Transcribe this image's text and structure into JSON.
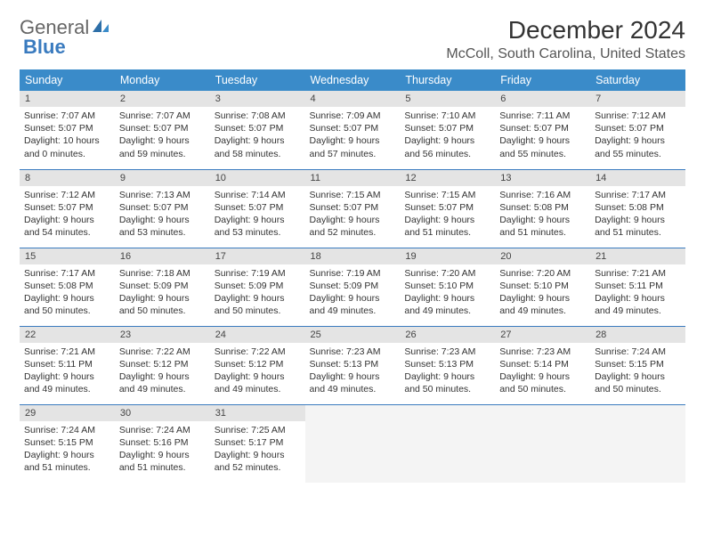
{
  "logo": {
    "text1": "General",
    "text2": "Blue"
  },
  "title": "December 2024",
  "location": "McColl, South Carolina, United States",
  "colors": {
    "header_bg": "#3a8bc9",
    "header_text": "#ffffff",
    "daynum_bg": "#e4e4e4",
    "row_border": "#3a7bbf",
    "logo_blue": "#3a7bbf"
  },
  "weekdays": [
    "Sunday",
    "Monday",
    "Tuesday",
    "Wednesday",
    "Thursday",
    "Friday",
    "Saturday"
  ],
  "days": [
    {
      "n": "1",
      "sunrise": "7:07 AM",
      "sunset": "5:07 PM",
      "daylight": "10 hours and 0 minutes."
    },
    {
      "n": "2",
      "sunrise": "7:07 AM",
      "sunset": "5:07 PM",
      "daylight": "9 hours and 59 minutes."
    },
    {
      "n": "3",
      "sunrise": "7:08 AM",
      "sunset": "5:07 PM",
      "daylight": "9 hours and 58 minutes."
    },
    {
      "n": "4",
      "sunrise": "7:09 AM",
      "sunset": "5:07 PM",
      "daylight": "9 hours and 57 minutes."
    },
    {
      "n": "5",
      "sunrise": "7:10 AM",
      "sunset": "5:07 PM",
      "daylight": "9 hours and 56 minutes."
    },
    {
      "n": "6",
      "sunrise": "7:11 AM",
      "sunset": "5:07 PM",
      "daylight": "9 hours and 55 minutes."
    },
    {
      "n": "7",
      "sunrise": "7:12 AM",
      "sunset": "5:07 PM",
      "daylight": "9 hours and 55 minutes."
    },
    {
      "n": "8",
      "sunrise": "7:12 AM",
      "sunset": "5:07 PM",
      "daylight": "9 hours and 54 minutes."
    },
    {
      "n": "9",
      "sunrise": "7:13 AM",
      "sunset": "5:07 PM",
      "daylight": "9 hours and 53 minutes."
    },
    {
      "n": "10",
      "sunrise": "7:14 AM",
      "sunset": "5:07 PM",
      "daylight": "9 hours and 53 minutes."
    },
    {
      "n": "11",
      "sunrise": "7:15 AM",
      "sunset": "5:07 PM",
      "daylight": "9 hours and 52 minutes."
    },
    {
      "n": "12",
      "sunrise": "7:15 AM",
      "sunset": "5:07 PM",
      "daylight": "9 hours and 51 minutes."
    },
    {
      "n": "13",
      "sunrise": "7:16 AM",
      "sunset": "5:08 PM",
      "daylight": "9 hours and 51 minutes."
    },
    {
      "n": "14",
      "sunrise": "7:17 AM",
      "sunset": "5:08 PM",
      "daylight": "9 hours and 51 minutes."
    },
    {
      "n": "15",
      "sunrise": "7:17 AM",
      "sunset": "5:08 PM",
      "daylight": "9 hours and 50 minutes."
    },
    {
      "n": "16",
      "sunrise": "7:18 AM",
      "sunset": "5:09 PM",
      "daylight": "9 hours and 50 minutes."
    },
    {
      "n": "17",
      "sunrise": "7:19 AM",
      "sunset": "5:09 PM",
      "daylight": "9 hours and 50 minutes."
    },
    {
      "n": "18",
      "sunrise": "7:19 AM",
      "sunset": "5:09 PM",
      "daylight": "9 hours and 49 minutes."
    },
    {
      "n": "19",
      "sunrise": "7:20 AM",
      "sunset": "5:10 PM",
      "daylight": "9 hours and 49 minutes."
    },
    {
      "n": "20",
      "sunrise": "7:20 AM",
      "sunset": "5:10 PM",
      "daylight": "9 hours and 49 minutes."
    },
    {
      "n": "21",
      "sunrise": "7:21 AM",
      "sunset": "5:11 PM",
      "daylight": "9 hours and 49 minutes."
    },
    {
      "n": "22",
      "sunrise": "7:21 AM",
      "sunset": "5:11 PM",
      "daylight": "9 hours and 49 minutes."
    },
    {
      "n": "23",
      "sunrise": "7:22 AM",
      "sunset": "5:12 PM",
      "daylight": "9 hours and 49 minutes."
    },
    {
      "n": "24",
      "sunrise": "7:22 AM",
      "sunset": "5:12 PM",
      "daylight": "9 hours and 49 minutes."
    },
    {
      "n": "25",
      "sunrise": "7:23 AM",
      "sunset": "5:13 PM",
      "daylight": "9 hours and 49 minutes."
    },
    {
      "n": "26",
      "sunrise": "7:23 AM",
      "sunset": "5:13 PM",
      "daylight": "9 hours and 50 minutes."
    },
    {
      "n": "27",
      "sunrise": "7:23 AM",
      "sunset": "5:14 PM",
      "daylight": "9 hours and 50 minutes."
    },
    {
      "n": "28",
      "sunrise": "7:24 AM",
      "sunset": "5:15 PM",
      "daylight": "9 hours and 50 minutes."
    },
    {
      "n": "29",
      "sunrise": "7:24 AM",
      "sunset": "5:15 PM",
      "daylight": "9 hours and 51 minutes."
    },
    {
      "n": "30",
      "sunrise": "7:24 AM",
      "sunset": "5:16 PM",
      "daylight": "9 hours and 51 minutes."
    },
    {
      "n": "31",
      "sunrise": "7:25 AM",
      "sunset": "5:17 PM",
      "daylight": "9 hours and 52 minutes."
    }
  ],
  "labels": {
    "sunrise": "Sunrise: ",
    "sunset": "Sunset: ",
    "daylight": "Daylight: "
  }
}
